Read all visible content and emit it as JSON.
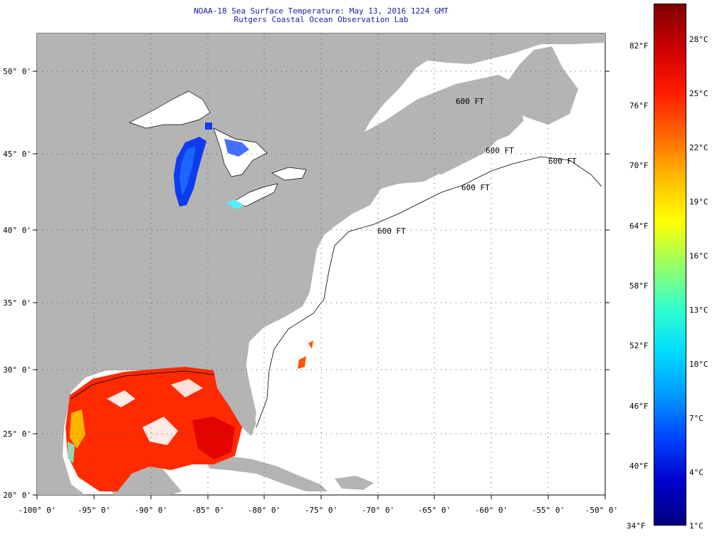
{
  "title": {
    "line1": "NOAA-18 Sea Surface Temperature:  May 13, 2016 1224 GMT",
    "line2": "Rutgers Coastal Ocean Observation Lab"
  },
  "map": {
    "lon_range": [
      -100,
      -50
    ],
    "lat_range": [
      20,
      52.5
    ],
    "lon_ticks": [
      "-100° 0'",
      "-95° 0'",
      "-90° 0'",
      "-85° 0'",
      "-80° 0'",
      "-75° 0'",
      "-70° 0'",
      "-65° 0'",
      "-60° 0'",
      "-55° 0'",
      "-50° 0'"
    ],
    "lat_ticks": [
      "50° 0'",
      "45° 0'",
      "40° 0'",
      "35° 0'",
      "30° 0'",
      "25° 0'",
      "20° 0'"
    ],
    "contour_labels": [
      "600 FT",
      "600 FT",
      "600 FT",
      "600 FT",
      "600 FT"
    ],
    "colors": {
      "land": "#b4b4b4",
      "cloud_masked_sea": "#ffffff",
      "gulf_warm": "#ff2a00",
      "gulf_hot": "#e00000",
      "lake_michigan": "#0d3cf0"
    }
  },
  "colorbar": {
    "fahrenheit": [
      "82°F",
      "76°F",
      "70°F",
      "64°F",
      "58°F",
      "52°F",
      "46°F",
      "40°F",
      "34°F"
    ],
    "celsius": [
      "28°C",
      "25°C",
      "22°C",
      "19°C",
      "16°C",
      "13°C",
      "10°C",
      "7°C",
      "4°C",
      "1°C"
    ],
    "gradient": [
      "#000080",
      "#0000cc",
      "#0044ff",
      "#0099ff",
      "#00ddff",
      "#33ffcc",
      "#99ff66",
      "#ffff00",
      "#ffbb00",
      "#ff6600",
      "#ff1a00",
      "#cc0000",
      "#800000"
    ]
  }
}
